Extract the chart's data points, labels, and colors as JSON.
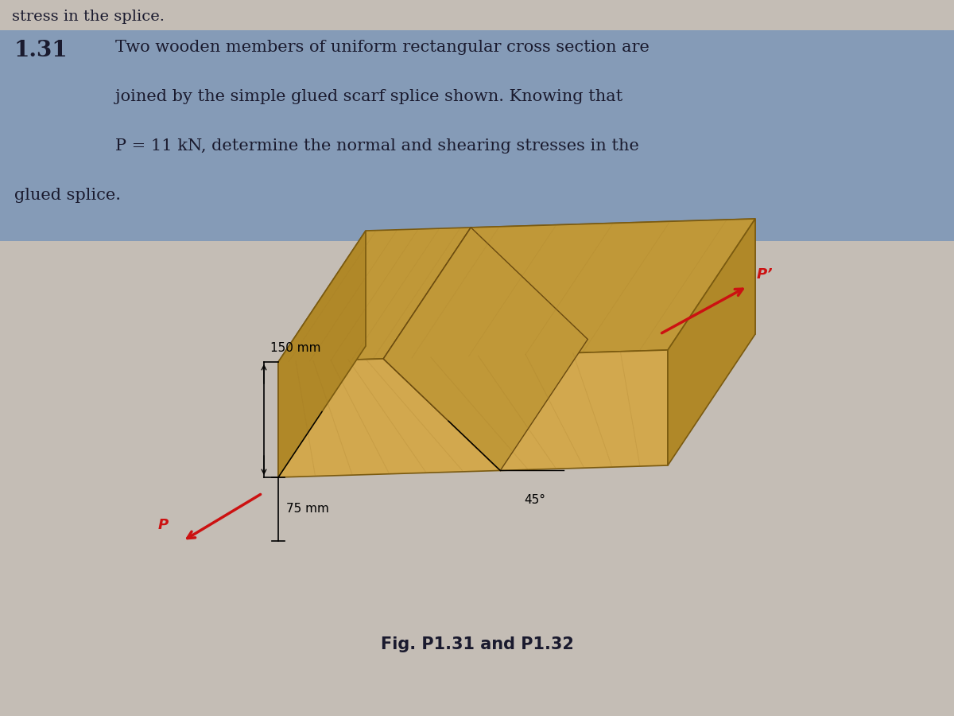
{
  "bg_color": "#c4bdb5",
  "header_text": "stress in the splice.",
  "problem_number": "1.31",
  "problem_text_line1": "Two wooden members of uniform rectangular cross section are",
  "problem_text_line2": "joined by the simple glued scarf splice shown. Knowing that",
  "problem_text_line3": "P = 11 kN, determine the normal and shearing stresses in the",
  "problem_text_line4": "glued splice.",
  "highlight_color": "#7090b8",
  "text_color": "#1a1a2e",
  "dim_150": "150 mm",
  "dim_75": "75 mm",
  "angle_label": "45°",
  "P_label": "P",
  "P_prime_label": "P’",
  "fig_caption": "Fig. P1.31 and P1.32",
  "wood_color_face": "#d2a84e",
  "wood_color_top": "#c09838",
  "wood_color_side": "#b08828",
  "wood_color_dark": "#907010",
  "wood_edge": "#7a5a10"
}
